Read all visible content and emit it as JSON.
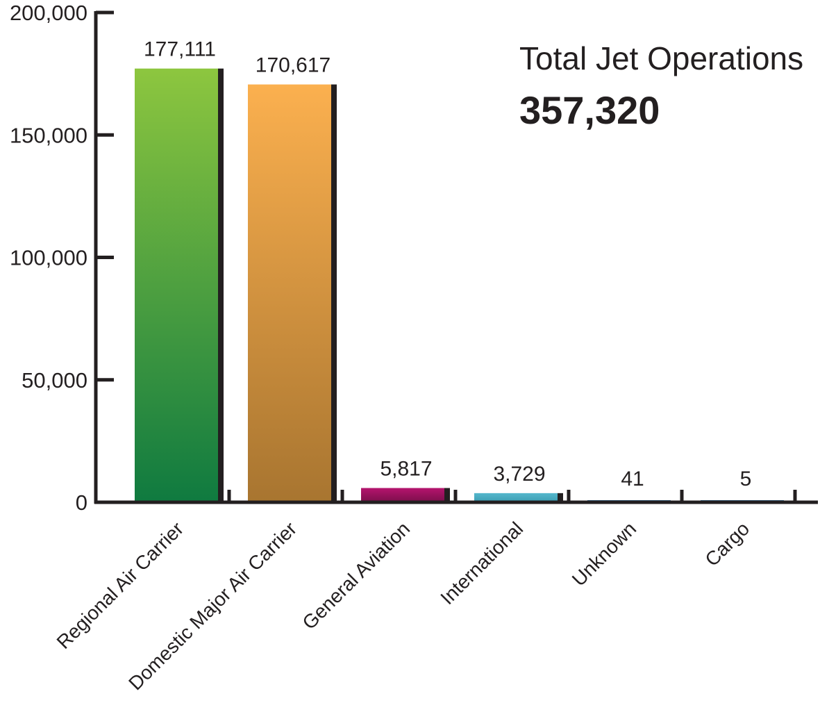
{
  "chart_data": {
    "type": "bar",
    "categories": [
      "Regional Air Carrier",
      "Domestic Major Air Carrier",
      "General Aviation",
      "International",
      "Unknown",
      "Cargo"
    ],
    "values": [
      177111,
      170617,
      5817,
      3729,
      41,
      5
    ],
    "value_labels": [
      "177,111",
      "170,617",
      "5,817",
      "3,729",
      "41",
      "5"
    ],
    "ylim": [
      0,
      200000
    ],
    "yticks": [
      0,
      50000,
      100000,
      150000,
      200000
    ],
    "ytick_labels": [
      "0",
      "50,000",
      "100,000",
      "150,000",
      "200,000"
    ],
    "grid": false,
    "legend": "none",
    "colors": [
      [
        "#8dc63f",
        "#0f7a40"
      ],
      [
        "#fbb04f",
        "#a87530"
      ],
      [
        "#b5146e",
        "#7a0e4a"
      ],
      [
        "#56b8cc",
        "#3a9cb2"
      ],
      [
        "#2f6d9a",
        "#2f6d9a"
      ],
      [
        "#2f6d9a",
        "#2f6d9a"
      ]
    ],
    "shadow_color": "#231f20"
  },
  "annotation": {
    "title": "Total Jet Operations",
    "value": "357,320"
  }
}
